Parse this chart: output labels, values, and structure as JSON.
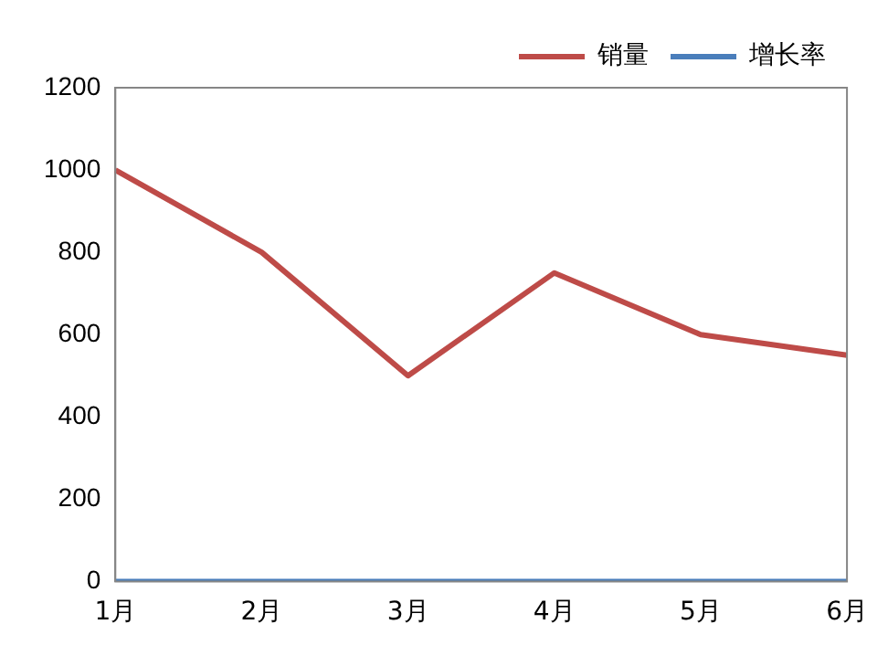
{
  "chart_data": {
    "type": "line",
    "categories": [
      "1月",
      "2月",
      "3月",
      "4月",
      "5月",
      "6月"
    ],
    "series": [
      {
        "name": "销量",
        "color": "#be4b48",
        "values": [
          1000,
          800,
          500,
          750,
          600,
          550
        ]
      },
      {
        "name": "增长率",
        "color": "#4a7ebb",
        "values": [
          0,
          0,
          0,
          0,
          0,
          0
        ]
      }
    ],
    "ylim": [
      0,
      1200
    ],
    "yticks": [
      0,
      200,
      400,
      600,
      800,
      1000,
      1200
    ],
    "grid": false,
    "legend": "top right",
    "marker": "none",
    "line_style": "solid"
  }
}
